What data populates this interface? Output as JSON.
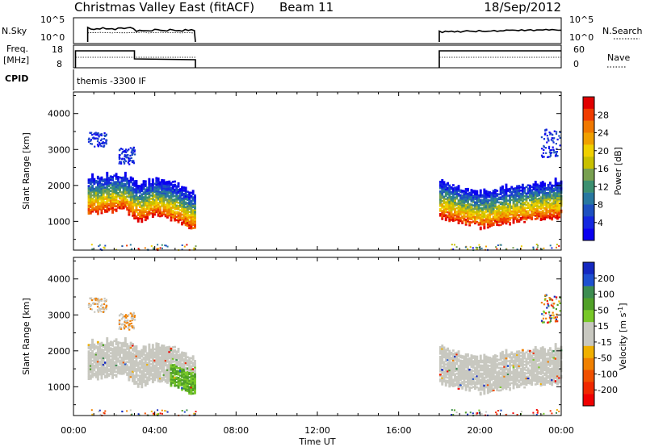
{
  "header": {
    "station": "Christmas Valley East (fitACF)",
    "beam": "Beam 11",
    "date": "18/Sep/2012"
  },
  "panels": {
    "nsky_label": "N.Sky",
    "nsky_ticks": [
      "10^5",
      "10^0"
    ],
    "nsearch_label": "N.Search",
    "nsearch_ticks": [
      "10^5",
      "10^0"
    ],
    "freq_label": "Freq.",
    "freq_unit": "[MHz]",
    "freq_ticks": [
      "18",
      "8"
    ],
    "nave_label": "Nave",
    "nave_ticks": [
      "60",
      "0"
    ],
    "cpid_label": "CPID",
    "cpid_text": "themis -3300 IF"
  },
  "chart_data": [
    {
      "type": "heatmap",
      "name": "power",
      "ylabel": "Slant Range [km]",
      "xlabel": "",
      "x_range_hours": [
        0,
        24
      ],
      "ylim": [
        200,
        4600
      ],
      "yticks": [
        1000,
        2000,
        3000,
        4000
      ],
      "colorbar": {
        "label": "Power [dB]",
        "ticks": [
          "28",
          "24",
          "20",
          "16",
          "12",
          "8",
          "4"
        ],
        "colors": [
          "#e00000",
          "#f03c00",
          "#f07800",
          "#f0a000",
          "#f0d000",
          "#c8c000",
          "#78a050",
          "#3c9070",
          "#2878a0",
          "#1e50c0",
          "#1428e0",
          "#0a00f0"
        ]
      },
      "data_windows_hours": [
        [
          0.7,
          6.0
        ],
        [
          18.0,
          24.0
        ]
      ],
      "band_center_km": [
        [
          0.7,
          1650
        ],
        [
          1.5,
          1700
        ],
        [
          2.5,
          1750
        ],
        [
          3.0,
          1500
        ],
        [
          3.2,
          1450
        ],
        [
          4.0,
          1600
        ],
        [
          5.0,
          1450
        ],
        [
          5.5,
          1300
        ],
        [
          6.0,
          1200
        ],
        [
          18.0,
          1550
        ],
        [
          19.0,
          1400
        ],
        [
          20.0,
          1250
        ],
        [
          21.0,
          1350
        ],
        [
          22.0,
          1450
        ],
        [
          23.0,
          1500
        ],
        [
          24.0,
          1550
        ]
      ]
    },
    {
      "type": "heatmap",
      "name": "velocity",
      "ylabel": "Slant Range [km]",
      "xlabel": "Time UT",
      "x_range_hours": [
        0,
        24
      ],
      "ylim": [
        200,
        4600
      ],
      "yticks": [
        1000,
        2000,
        3000,
        4000
      ],
      "xticks": [
        "00:00",
        "04:00",
        "08:00",
        "12:00",
        "16:00",
        "20:00",
        "00:00"
      ],
      "colorbar": {
        "label": "Velocity [m s^-1]",
        "ticks": [
          "200",
          "100",
          "50",
          "15",
          "-15",
          "-50",
          "-100",
          "-200"
        ],
        "colors": [
          "#1428c0",
          "#1e50d0",
          "#3c8c50",
          "#50a028",
          "#78c828",
          "#c8c8c0",
          "#c8c8c0",
          "#f0b000",
          "#f08000",
          "#f05000",
          "#f02800",
          "#f00000"
        ]
      },
      "data_windows_hours": [
        [
          0.7,
          6.0
        ],
        [
          18.0,
          24.0
        ]
      ]
    }
  ]
}
